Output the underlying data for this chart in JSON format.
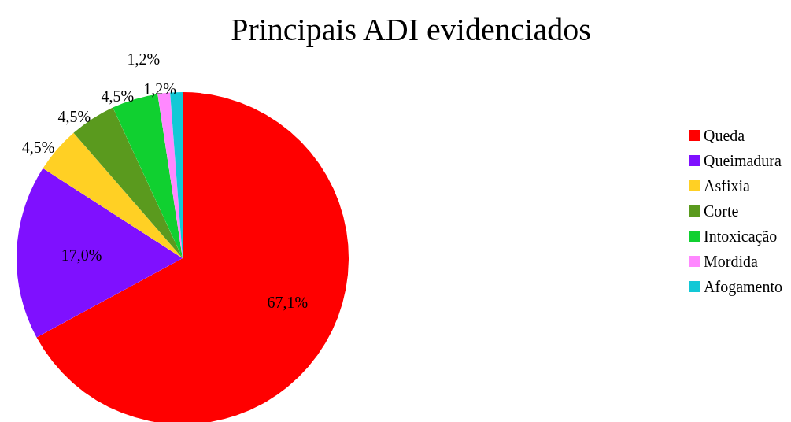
{
  "chart_data": {
    "type": "pie",
    "title": "Principais ADI evidenciados",
    "categories": [
      "Queda",
      "Queimadura",
      "Asfixia",
      "Corte",
      "Intoxicação",
      "Mordida",
      "Afogamento"
    ],
    "values": [
      67.1,
      17.0,
      4.5,
      4.5,
      4.5,
      1.2,
      1.2
    ],
    "colors": [
      "#ff0000",
      "#7f10ff",
      "#ffd024",
      "#5a9a1e",
      "#10d030",
      "#ff88ff",
      "#12c8d6"
    ],
    "value_labels": [
      "67,1%",
      "17,0%",
      "4,5%",
      "4,5%",
      "4,5%",
      "1,2%",
      "1,2%"
    ],
    "legend": "right"
  }
}
